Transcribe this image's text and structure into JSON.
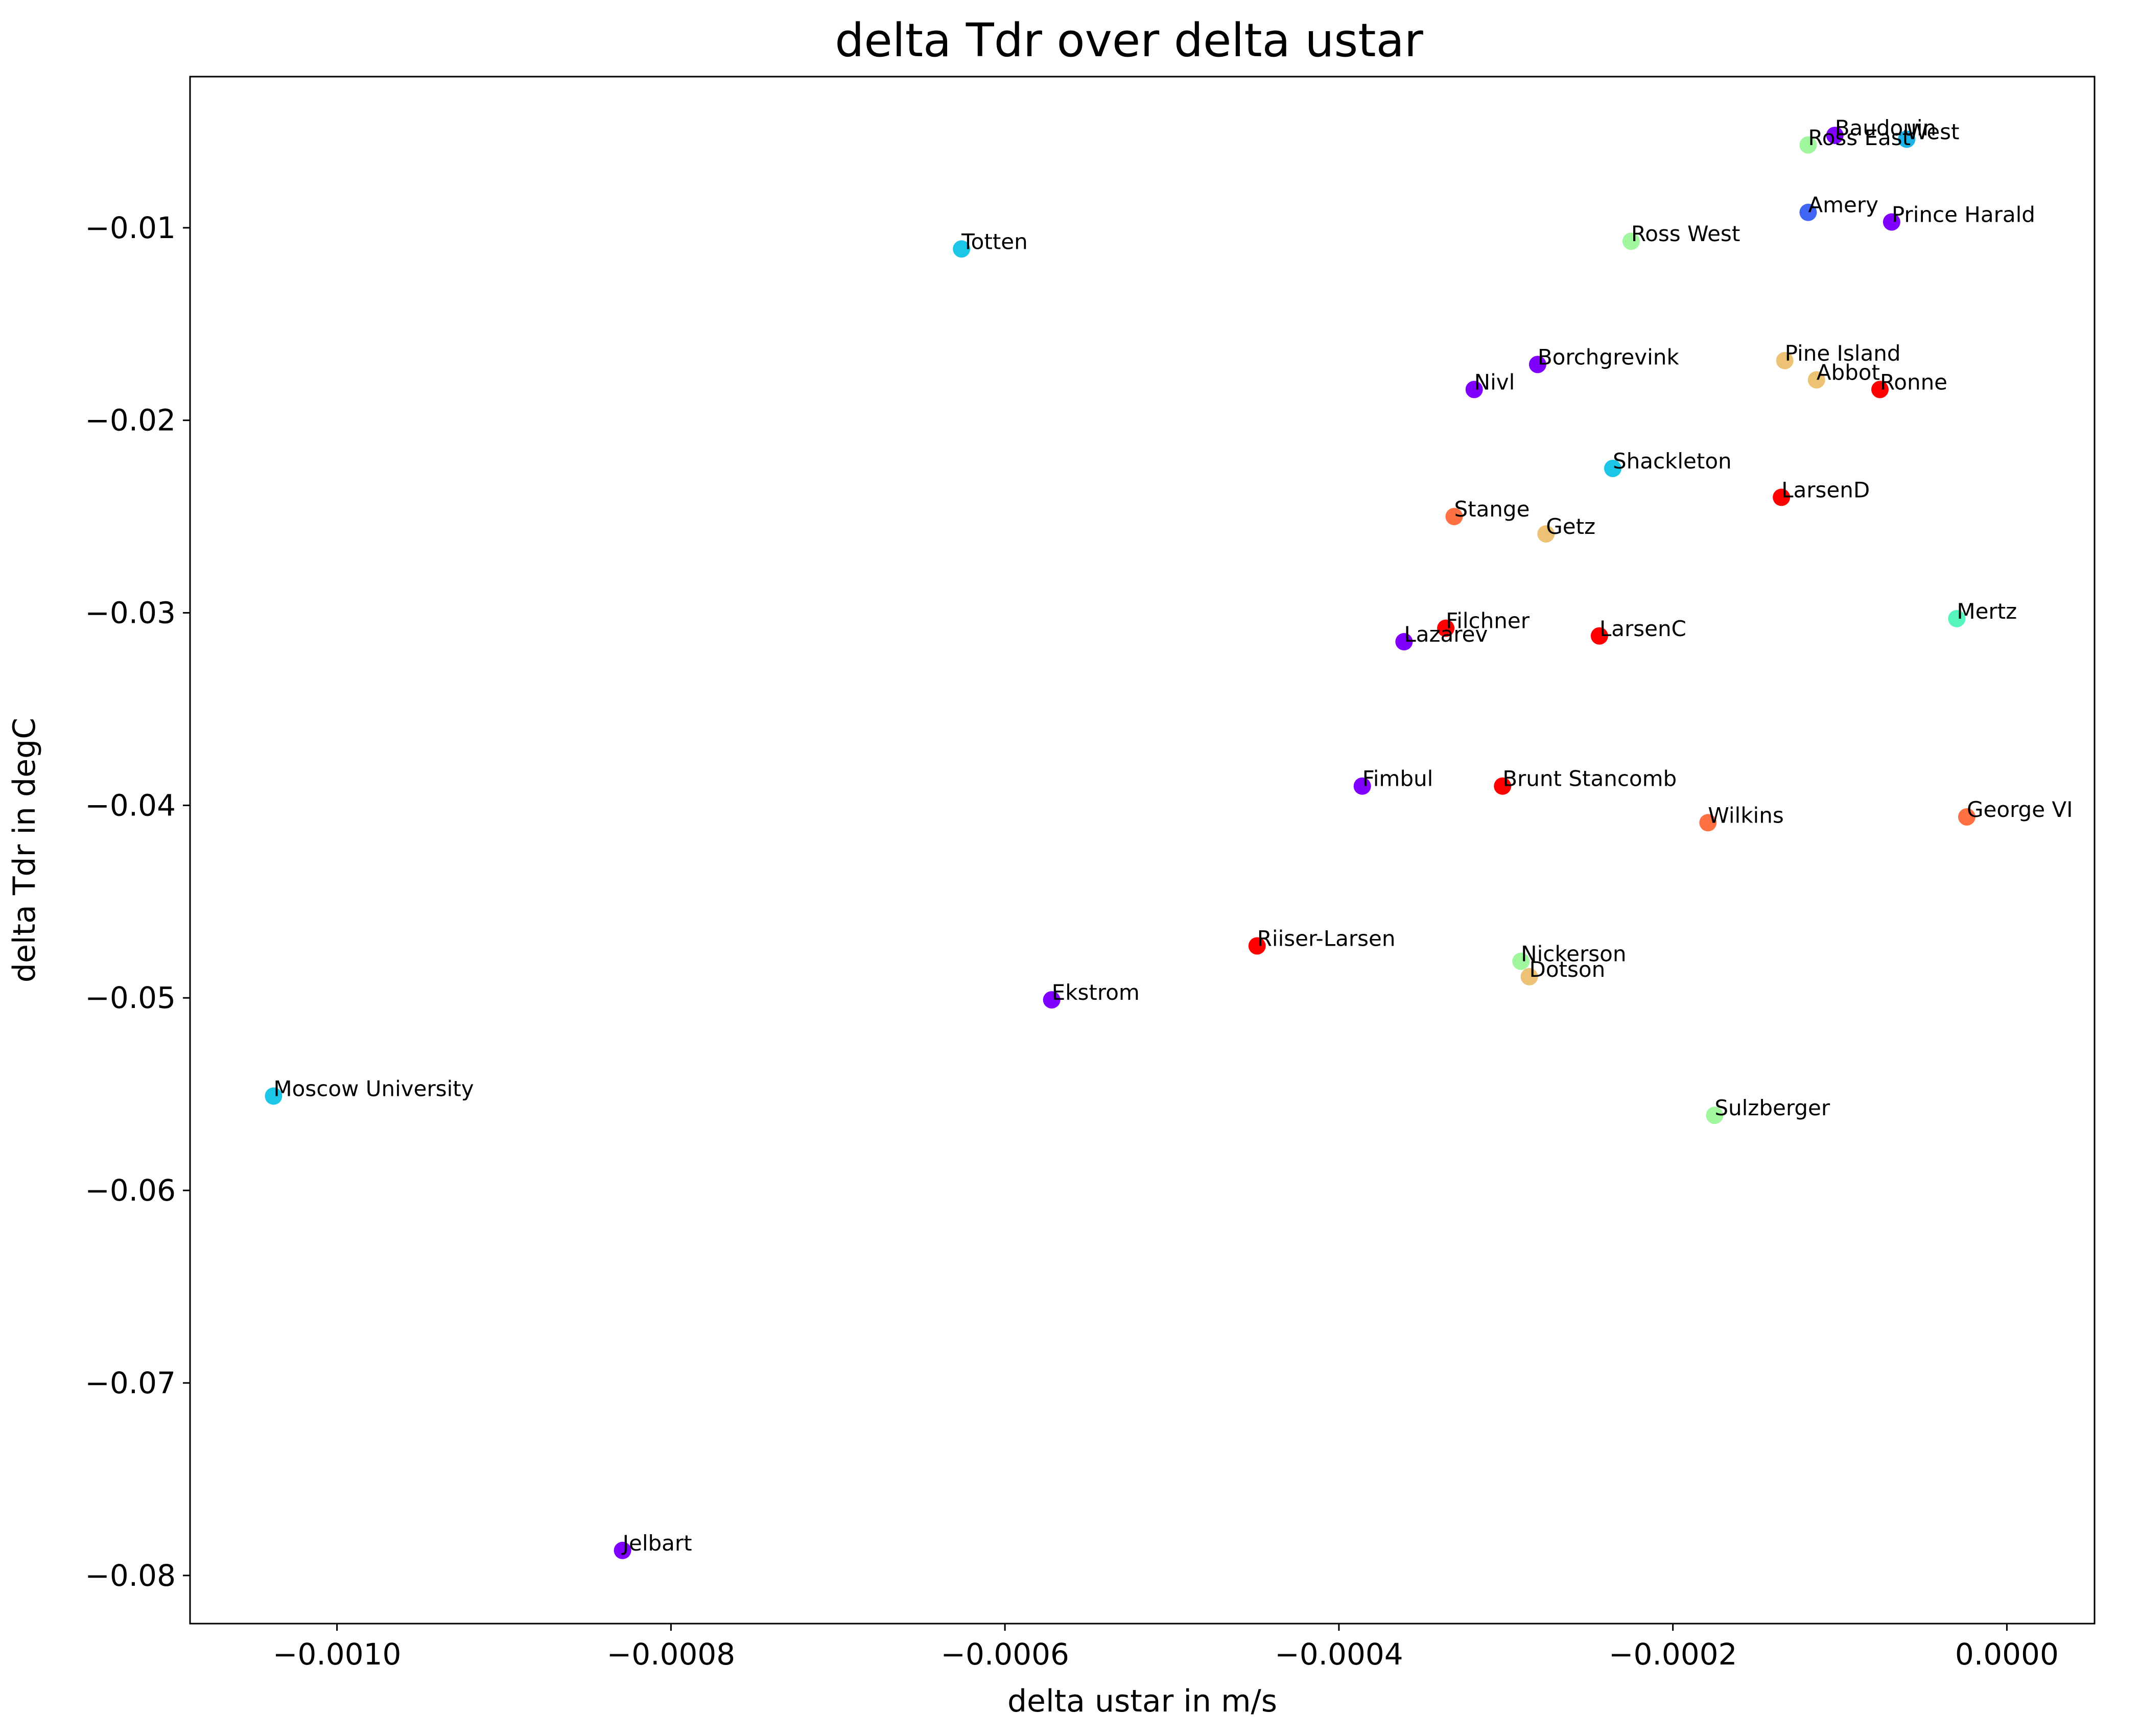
{
  "chart_data": {
    "type": "scatter",
    "title": "delta Tdr over delta ustar",
    "xlabel": "delta ustar in m/s",
    "ylabel": "delta Tdr in degC",
    "xlim": [
      -0.001088,
      5.25e-05
    ],
    "ylim": [
      -0.0825,
      -0.00215
    ],
    "xticks": [
      -0.001,
      -0.0008,
      -0.0006,
      -0.0004,
      -0.0002,
      0.0
    ],
    "xtick_labels": [
      "−0.0010",
      "−0.0008",
      "−0.0006",
      "−0.0004",
      "−0.0002",
      "0.0000"
    ],
    "yticks": [
      -0.01,
      -0.02,
      -0.03,
      -0.04,
      -0.05,
      -0.06,
      -0.07,
      -0.08
    ],
    "ytick_labels": [
      "−0.01",
      "−0.02",
      "−0.03",
      "−0.04",
      "−0.05",
      "−0.06",
      "−0.07",
      "−0.08"
    ],
    "grid": false,
    "points": [
      {
        "name": "Baudouin",
        "x": -0.000103,
        "y": -0.0052,
        "color": "#8000ff"
      },
      {
        "name": "Ross East",
        "x": -0.000119,
        "y": -0.0057,
        "color": "#a0f79e"
      },
      {
        "name": "West",
        "x": -6e-05,
        "y": -0.0054,
        "color": "#1cb3e8"
      },
      {
        "name": "Amery",
        "x": -0.000119,
        "y": -0.0092,
        "color": "#3f65f4"
      },
      {
        "name": "Prince Harald",
        "x": -6.9e-05,
        "y": -0.0097,
        "color": "#8000ff"
      },
      {
        "name": "Ross West",
        "x": -0.000225,
        "y": -0.0107,
        "color": "#a0f79e"
      },
      {
        "name": "Totten",
        "x": -0.000626,
        "y": -0.0111,
        "color": "#1cc6e6"
      },
      {
        "name": "Pine Island",
        "x": -0.000133,
        "y": -0.0169,
        "color": "#eec275"
      },
      {
        "name": "Borchgrevink",
        "x": -0.000281,
        "y": -0.0171,
        "color": "#8000ff"
      },
      {
        "name": "Abbot",
        "x": -0.000114,
        "y": -0.0179,
        "color": "#eec275"
      },
      {
        "name": "Nivl",
        "x": -0.000319,
        "y": -0.0184,
        "color": "#8000ff"
      },
      {
        "name": "Ronne",
        "x": -7.6e-05,
        "y": -0.0184,
        "color": "#ff0000"
      },
      {
        "name": "Shackleton",
        "x": -0.000236,
        "y": -0.0225,
        "color": "#1cc6e6"
      },
      {
        "name": "LarsenD",
        "x": -0.000135,
        "y": -0.024,
        "color": "#ff0000"
      },
      {
        "name": "Stange",
        "x": -0.000331,
        "y": -0.025,
        "color": "#ff7043"
      },
      {
        "name": "Getz",
        "x": -0.000276,
        "y": -0.0259,
        "color": "#eec275"
      },
      {
        "name": "Mertz",
        "x": -3e-05,
        "y": -0.0303,
        "color": "#56f5bb"
      },
      {
        "name": "Filchner",
        "x": -0.000336,
        "y": -0.0308,
        "color": "#ff0000"
      },
      {
        "name": "LarsenC",
        "x": -0.000244,
        "y": -0.0312,
        "color": "#ff0000"
      },
      {
        "name": "Lazarev",
        "x": -0.000361,
        "y": -0.0315,
        "color": "#8000ff"
      },
      {
        "name": "Fimbul",
        "x": -0.000386,
        "y": -0.039,
        "color": "#8000ff"
      },
      {
        "name": "Brunt Stancomb",
        "x": -0.000302,
        "y": -0.039,
        "color": "#ff0000"
      },
      {
        "name": "George VI",
        "x": -2.4e-05,
        "y": -0.0406,
        "color": "#ff7043"
      },
      {
        "name": "Wilkins",
        "x": -0.000179,
        "y": -0.0409,
        "color": "#ff7043"
      },
      {
        "name": "Riiser-Larsen",
        "x": -0.000449,
        "y": -0.0473,
        "color": "#ff0000"
      },
      {
        "name": "Nickerson",
        "x": -0.000291,
        "y": -0.0481,
        "color": "#a0f79e"
      },
      {
        "name": "Dotson",
        "x": -0.000286,
        "y": -0.0489,
        "color": "#eec275"
      },
      {
        "name": "Ekstrom",
        "x": -0.000572,
        "y": -0.0501,
        "color": "#8000ff"
      },
      {
        "name": "Moscow University",
        "x": -0.001038,
        "y": -0.0551,
        "color": "#1cc6e6"
      },
      {
        "name": "Sulzberger",
        "x": -0.000175,
        "y": -0.0561,
        "color": "#a0f79e"
      },
      {
        "name": "Jelbart",
        "x": -0.000829,
        "y": -0.0787,
        "color": "#8000ff"
      }
    ]
  }
}
